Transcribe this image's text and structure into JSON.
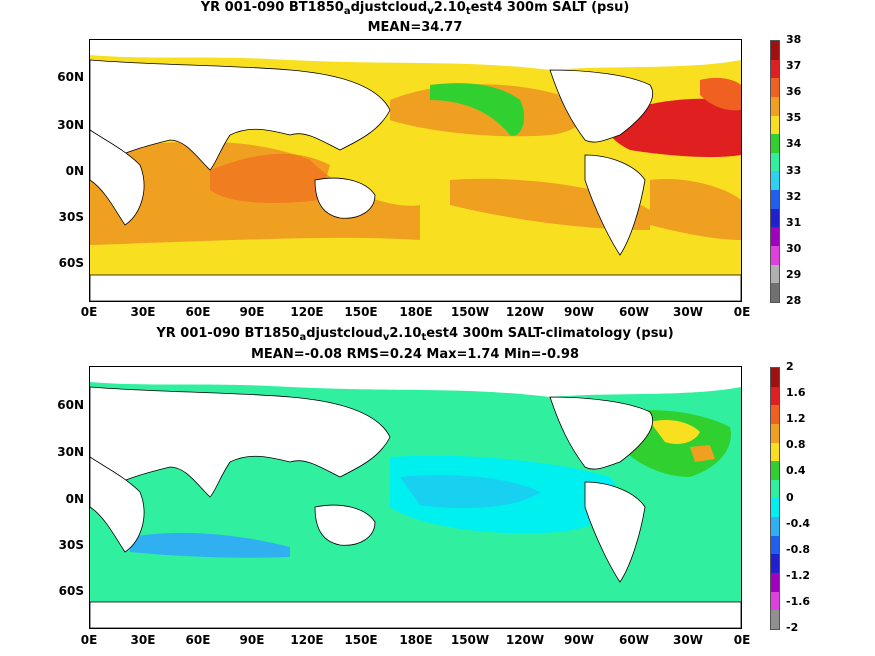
{
  "panel1": {
    "title_parts": [
      "YR 001-090 BT1850",
      "a",
      "djustcloud",
      "v",
      "2.10",
      "t",
      "est4 300m SALT (psu)"
    ],
    "subtitle": "MEAN=34.77",
    "colorbar": {
      "labels": [
        "38",
        "37",
        "36",
        "35",
        "34",
        "33",
        "32",
        "31",
        "30",
        "29",
        "28"
      ],
      "colors": [
        "#a01010",
        "#e02020",
        "#f06020",
        "#f0a020",
        "#f8e020",
        "#30d030",
        "#30f0a0",
        "#30d0f0",
        "#2060f0",
        "#2020d0",
        "#a000c0",
        "#e040e0",
        "#b0b0b0",
        "#707070"
      ]
    }
  },
  "panel2": {
    "title_parts": [
      "YR 001-090 BT1850",
      "a",
      "djustcloud",
      "v",
      "2.10",
      "t",
      "est4 300m SALT-climatology (psu)"
    ],
    "subtitle": "MEAN=-0.08   RMS=0.24   Max=1.74   Min=-0.98",
    "colorbar": {
      "labels": [
        "2",
        "1.6",
        "1.2",
        "0.8",
        "0.4",
        "0",
        "-0.4",
        "-0.8",
        "-1.2",
        "-1.6",
        "-2"
      ],
      "colors": [
        "#a01010",
        "#e02020",
        "#f06020",
        "#f0a020",
        "#f8e020",
        "#30d030",
        "#30f0a0",
        "#00f0f0",
        "#30b0f0",
        "#2060f0",
        "#2020d0",
        "#a000c0",
        "#e040e0",
        "#909090"
      ]
    }
  },
  "axes": {
    "lat_labels": [
      "60N",
      "30N",
      "0N",
      "30S",
      "60S"
    ],
    "lon_labels": [
      "0E",
      "30E",
      "60E",
      "90E",
      "120E",
      "150E",
      "180E",
      "150W",
      "120W",
      "90W",
      "60W",
      "30W",
      "0E"
    ]
  },
  "icons": {
    "map": "land-mask-shape"
  }
}
